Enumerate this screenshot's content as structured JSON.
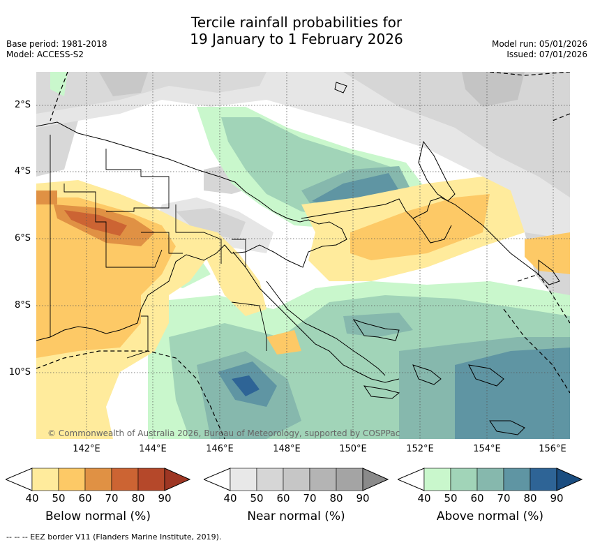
{
  "title": {
    "line1": "Tercile rainfall probabilities for",
    "line2": "19 January to 1 February 2026"
  },
  "meta": {
    "base_period": "Base period: 1981-2018",
    "model": "Model: ACCESS-S2",
    "model_run": "Model run: 05/01/2026",
    "issued": "Issued: 07/01/2026"
  },
  "map": {
    "lat_labels": [
      "2°S",
      "4°S",
      "6°S",
      "8°S",
      "10°S"
    ],
    "lon_labels": [
      "142°E",
      "144°E",
      "146°E",
      "148°E",
      "150°E",
      "152°E",
      "154°E",
      "156°E"
    ],
    "gridlines": true,
    "copyright": "© Commonwealth of Australia 2026, Bureau of Meteorology, supported by COSPPac"
  },
  "colorbars": [
    {
      "title": "Below normal (%)",
      "ticks": [
        "40",
        "50",
        "60",
        "70",
        "80",
        "90"
      ],
      "colors": [
        "#ffeb9c",
        "#fdc966",
        "#e09144",
        "#cc6433",
        "#b5482a",
        "#9e3623"
      ]
    },
    {
      "title": "Near normal (%)",
      "ticks": [
        "40",
        "50",
        "60",
        "70",
        "80",
        "90"
      ],
      "colors": [
        "#e8e8e8",
        "#d6d6d6",
        "#c6c6c6",
        "#b4b4b4",
        "#a4a4a4",
        "#8a8a8a"
      ]
    },
    {
      "title": "Above normal (%)",
      "ticks": [
        "40",
        "50",
        "60",
        "70",
        "80",
        "90"
      ],
      "colors": [
        "#c9f7cc",
        "#a1d4b8",
        "#86b8ad",
        "#5f95a3",
        "#2e6496",
        "#1a4d80"
      ]
    }
  ],
  "footer": "--  --  -- EEZ border V11 (Flanders Marine Institute, 2019)."
}
